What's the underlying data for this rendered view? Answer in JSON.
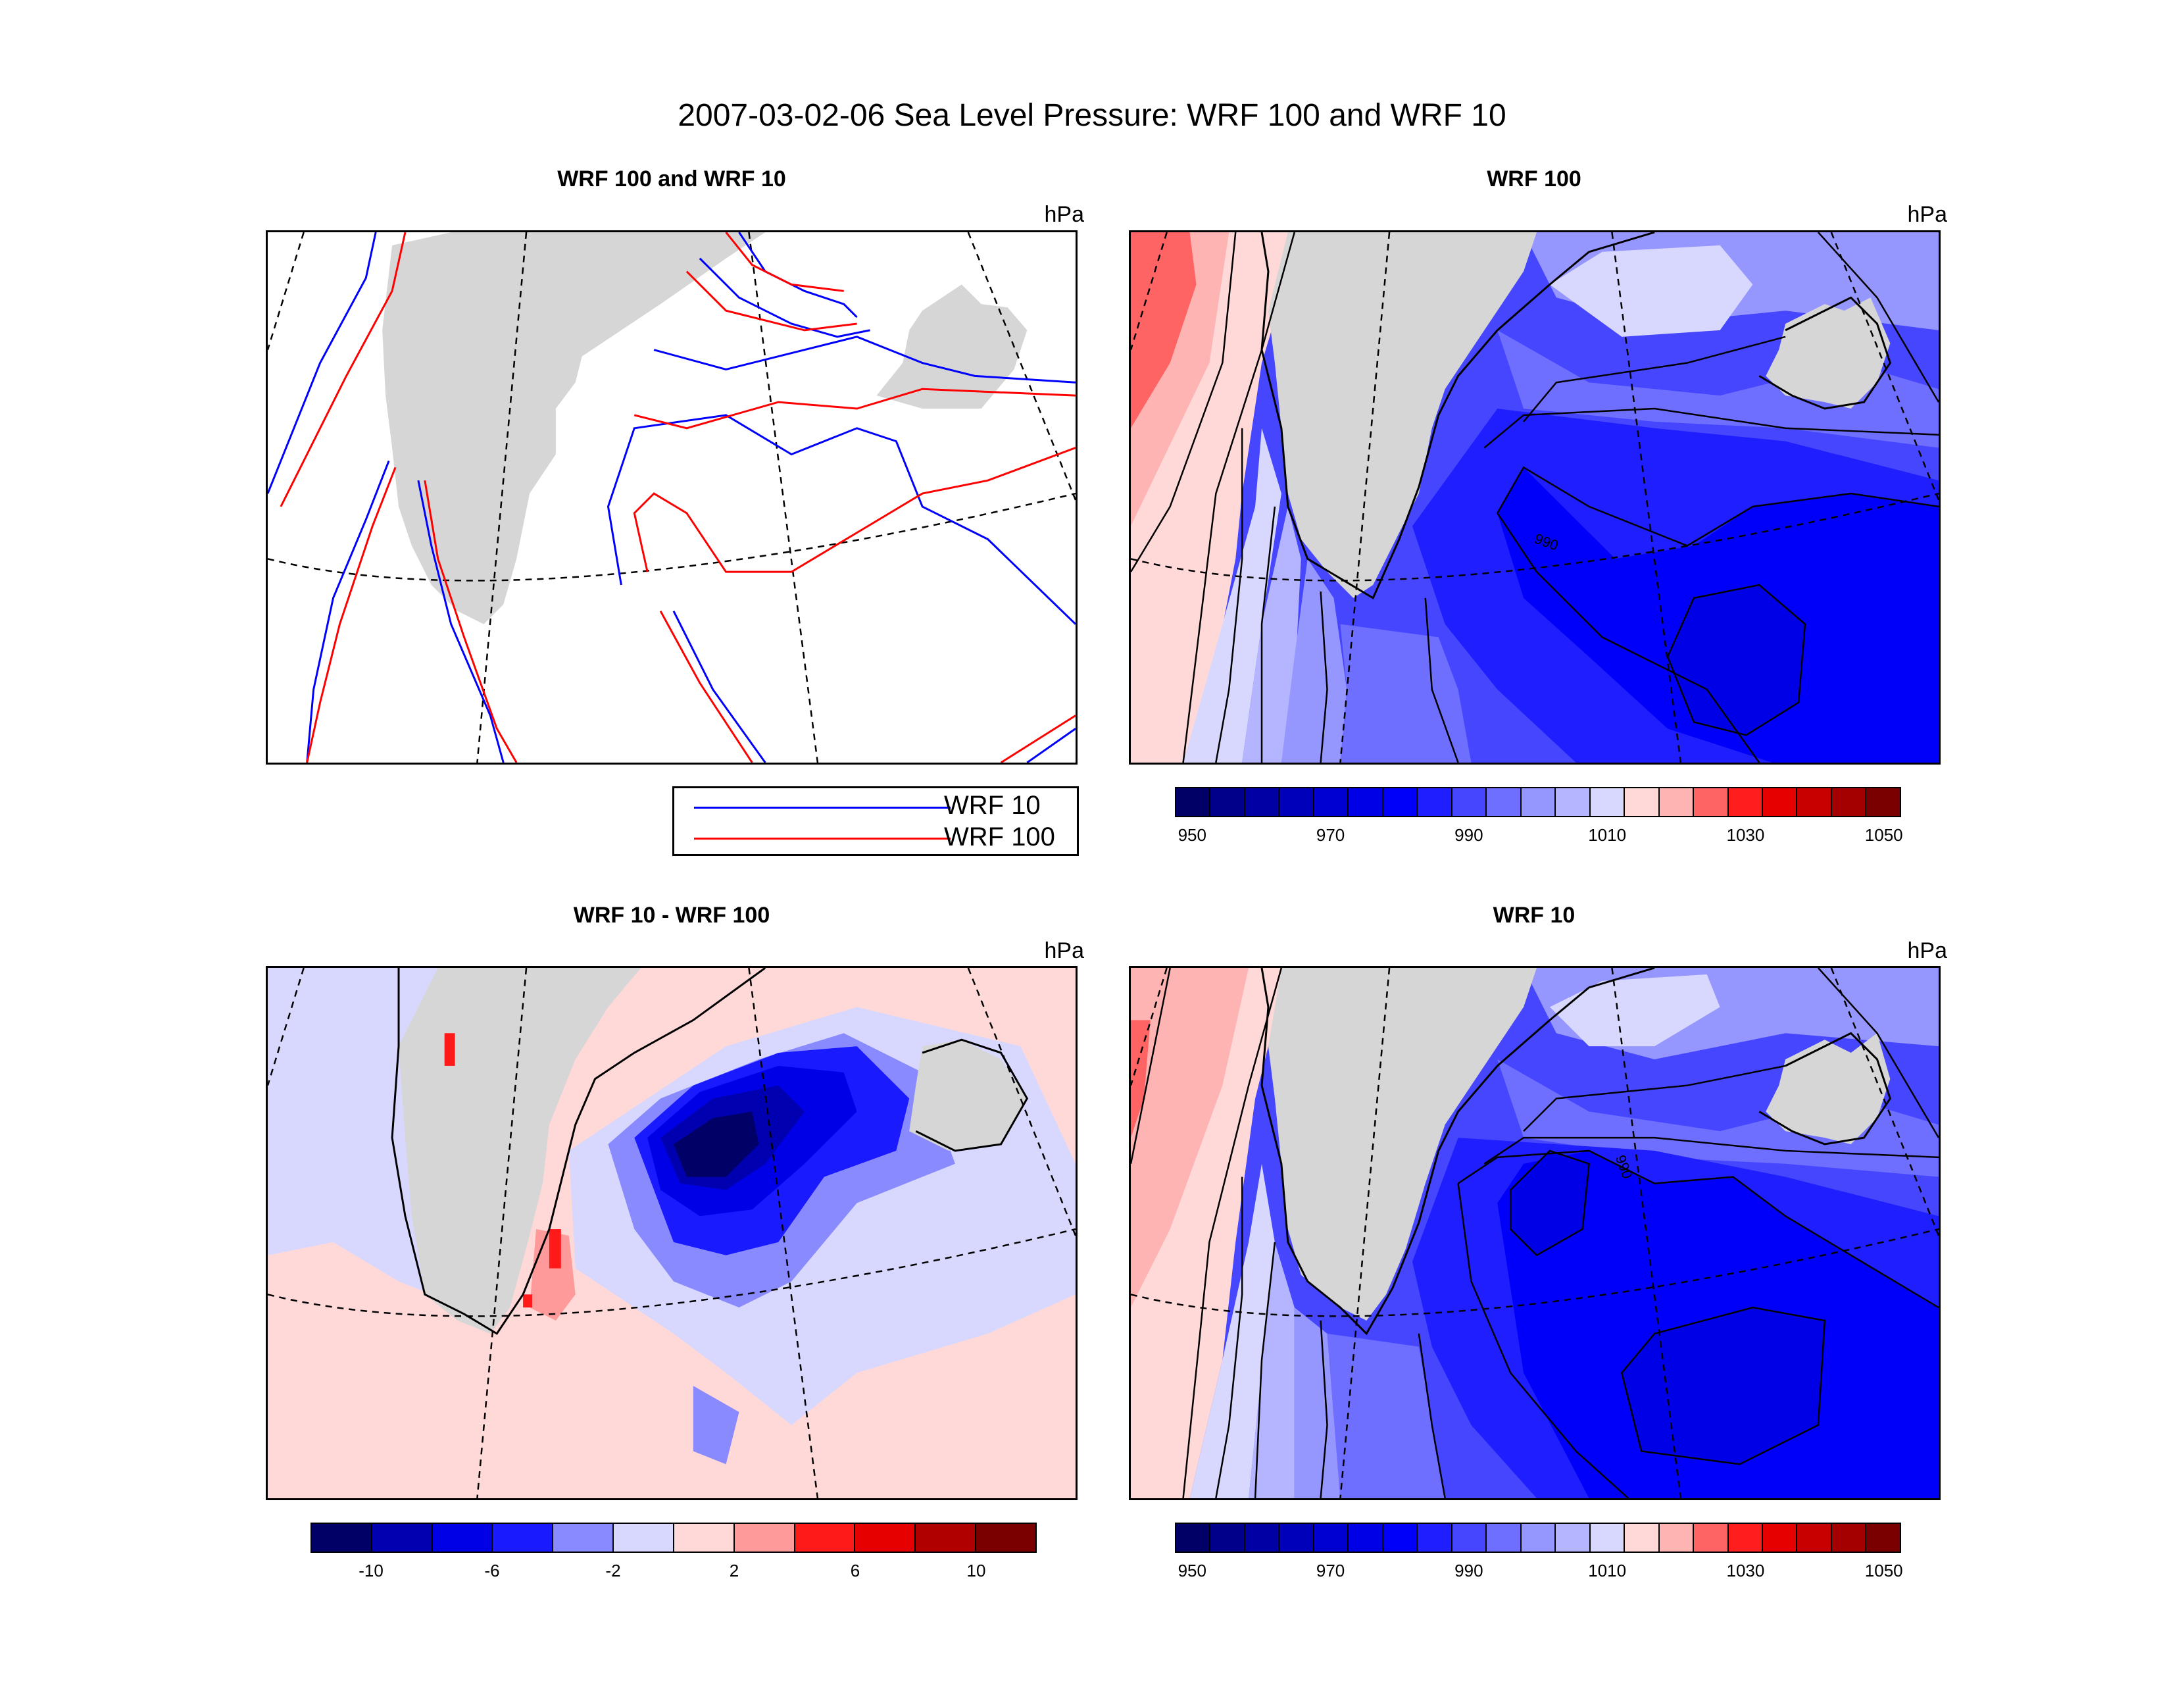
{
  "main_title": "2007-03-02-06 Sea Level Pressure: WRF 100 and WRF 10",
  "panels": {
    "overlay": {
      "title": "WRF 100 and WRF 10",
      "unit": "hPa",
      "legend": [
        {
          "label": "WRF 10",
          "color": "#0000ff"
        },
        {
          "label": "WRF 100",
          "color": "#ff0000"
        }
      ]
    },
    "wrf100": {
      "title": "WRF 100",
      "unit": "hPa",
      "contour_label": "990"
    },
    "diff": {
      "title": "WRF 10 - WRF 100",
      "unit": "hPa"
    },
    "wrf10": {
      "title": "WRF 10",
      "unit": "hPa",
      "contour_label": "990"
    }
  },
  "colorbars": {
    "pressure": {
      "colors": [
        "#000066",
        "#00008b",
        "#0000a5",
        "#0000bb",
        "#0000d2",
        "#0000e6",
        "#0000fa",
        "#1e1eff",
        "#4646ff",
        "#6e6eff",
        "#9696ff",
        "#b4b4ff",
        "#d8d8ff",
        "#ffd8d8",
        "#ffb4b4",
        "#ff6464",
        "#ff1e1e",
        "#e60000",
        "#c80000",
        "#a50000",
        "#7a0000"
      ],
      "labels": [
        "950",
        "970",
        "990",
        "1010",
        "1030",
        "1050"
      ]
    },
    "difference": {
      "colors": [
        "#000066",
        "#0000b0",
        "#0000e6",
        "#1a1aff",
        "#8a8aff",
        "#d8d8ff",
        "#ffd8d8",
        "#ff9a9a",
        "#ff1a1a",
        "#e60000",
        "#b00000",
        "#7a0000"
      ],
      "labels": [
        "-10",
        "-6",
        "-2",
        "2",
        "6",
        "10"
      ]
    }
  },
  "colors": {
    "land": "#d6d6d6",
    "sea_low": "#0000e6",
    "contour": "#000000"
  }
}
